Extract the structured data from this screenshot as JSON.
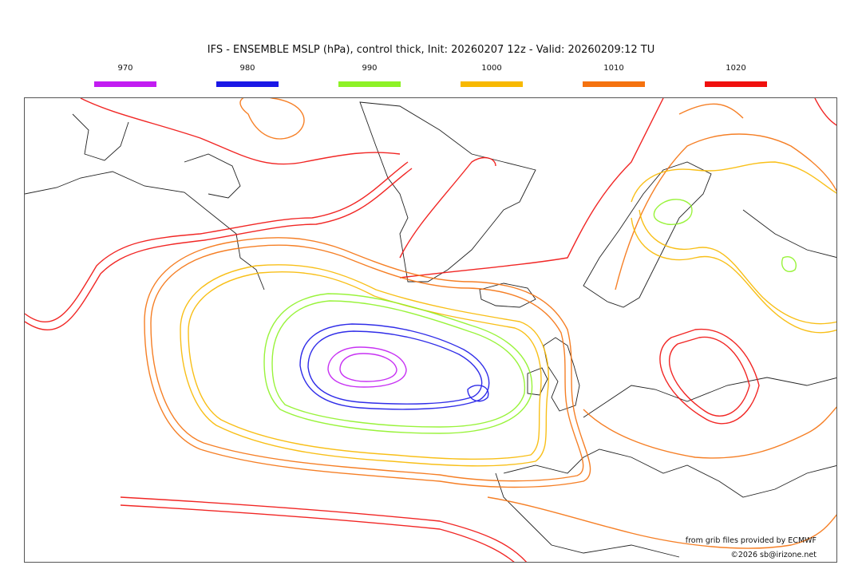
{
  "title": "IFS - ENSEMBLE MSLP (hPa), control thick, Init: 20260207 12z - Valid: 20260209:12 TU",
  "legend": [
    {
      "label": "970",
      "color": "#c21cf2"
    },
    {
      "label": "980",
      "color": "#1a17e6"
    },
    {
      "label": "990",
      "color": "#8ef226"
    },
    {
      "label": "1000",
      "color": "#f8b900"
    },
    {
      "label": "1010",
      "color": "#f5720f"
    },
    {
      "label": "1020",
      "color": "#f0100e"
    }
  ],
  "credits": {
    "source": "from grib files provided by ECMWF",
    "copyright": "©2026 sb@irizone.net"
  }
}
